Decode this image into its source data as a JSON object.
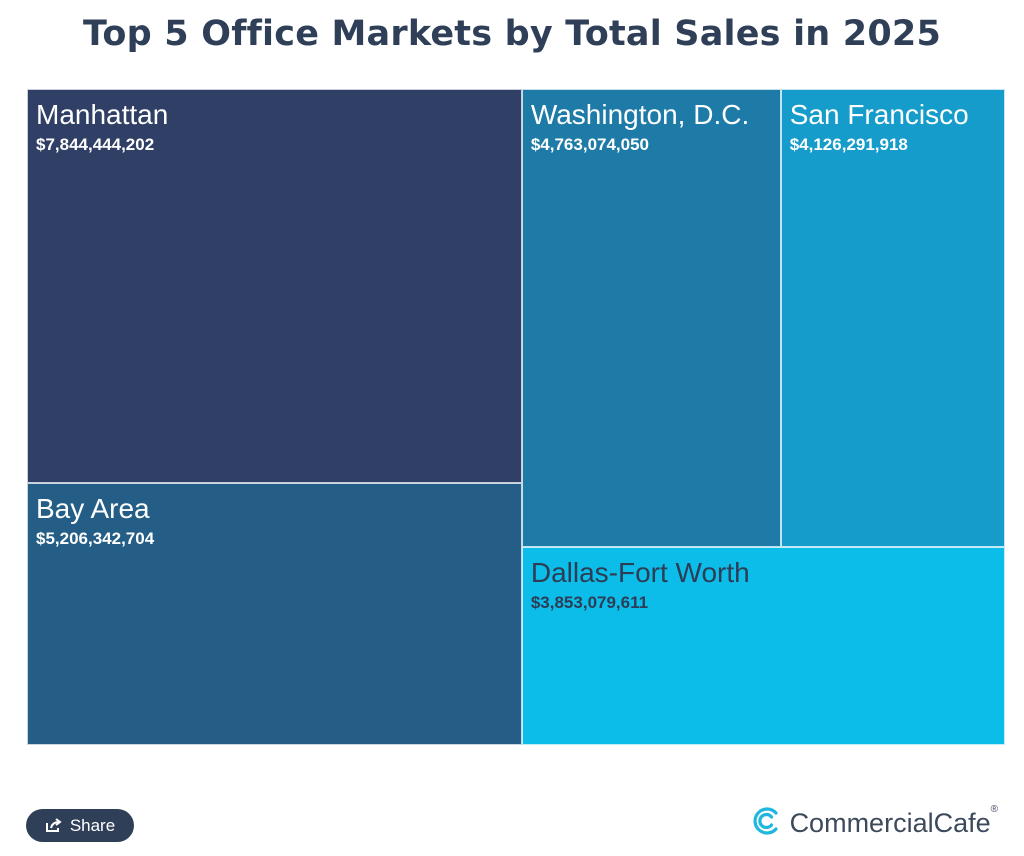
{
  "title": "Top 5 Office Markets by Total Sales in 2025",
  "chart_data": {
    "type": "treemap",
    "title": "Top 5 Office Markets by Total Sales in 2025",
    "items": [
      {
        "name": "Manhattan",
        "value": 7844444202,
        "label": "$7,844,444,202",
        "color": "#2f3f66",
        "text_color": "#ffffff"
      },
      {
        "name": "Bay Area",
        "value": 5206342704,
        "label": "$5,206,342,704",
        "color": "#245e86",
        "text_color": "#ffffff"
      },
      {
        "name": "Washington, D.C.",
        "value": 4763074050,
        "label": "$4,763,074,050",
        "color": "#1e7ba7",
        "text_color": "#ffffff"
      },
      {
        "name": "San Francisco",
        "value": 4126291918,
        "label": "$4,126,291,918",
        "color": "#159cca",
        "text_color": "#ffffff"
      },
      {
        "name": "Dallas-Fort Worth",
        "value": 3853079611,
        "label": "$3,853,079,611",
        "color": "#0cbde9",
        "text_color": "#2d3d55"
      }
    ]
  },
  "footer": {
    "share_label": "Share",
    "brand_name": "CommercialCafe",
    "brand_mark": "®",
    "brand_color": "#1fb6e0",
    "share_icon": "share-icon",
    "logo_icon": "commercialcafe-logo-icon"
  }
}
